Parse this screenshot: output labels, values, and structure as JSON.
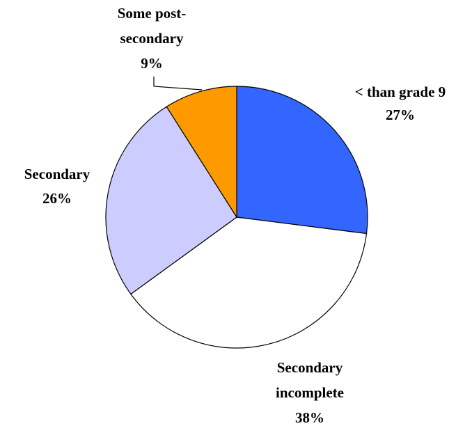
{
  "chart_data": {
    "type": "pie",
    "categories": [
      "< than grade 9",
      "Secondary incomplete",
      "Secondary",
      "Some post-secondary"
    ],
    "values": [
      27,
      38,
      26,
      9
    ],
    "value_labels": [
      "27%",
      "38%",
      "26%",
      "9%"
    ],
    "colors": [
      "#3366ff",
      "#ffffff",
      "#ccccff",
      "#ff9900"
    ]
  }
}
